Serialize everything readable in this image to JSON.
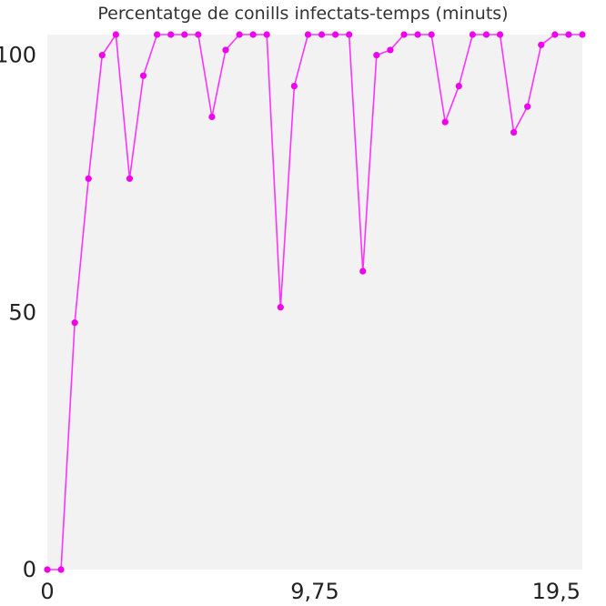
{
  "chart_data": {
    "type": "line",
    "title": "Percentatge de conills infectats-temps (minuts)",
    "xlabel": "",
    "ylabel": "",
    "xlim": [
      0,
      19.5
    ],
    "ylim": [
      0,
      104
    ],
    "x_ticks": [
      {
        "value": 0,
        "label": "0"
      },
      {
        "value": 9.75,
        "label": "9,75"
      },
      {
        "value": 19.5,
        "label": "19,5"
      }
    ],
    "y_ticks": [
      {
        "value": 0,
        "label": "0"
      },
      {
        "value": 50,
        "label": "50"
      },
      {
        "value": 100,
        "label": "100"
      }
    ],
    "grid": false,
    "background_color": "#f2f2f2",
    "series": [
      {
        "color": "#ff33ff",
        "marker_color": "#ee00ee",
        "points": [
          [
            0,
            0
          ],
          [
            0.5,
            0
          ],
          [
            1,
            48
          ],
          [
            1.5,
            76
          ],
          [
            2,
            100
          ],
          [
            2.5,
            104
          ],
          [
            3,
            76
          ],
          [
            3.5,
            96
          ],
          [
            4,
            104
          ],
          [
            4.5,
            104
          ],
          [
            5,
            104
          ],
          [
            5.5,
            104
          ],
          [
            6,
            88
          ],
          [
            6.5,
            101
          ],
          [
            7,
            104
          ],
          [
            7.5,
            104
          ],
          [
            8,
            104
          ],
          [
            8.5,
            51
          ],
          [
            9,
            94
          ],
          [
            9.5,
            104
          ],
          [
            10,
            104
          ],
          [
            10.5,
            104
          ],
          [
            11,
            104
          ],
          [
            11.5,
            58
          ],
          [
            12,
            100
          ],
          [
            12.5,
            101
          ],
          [
            13,
            104
          ],
          [
            13.5,
            104
          ],
          [
            14,
            104
          ],
          [
            14.5,
            87
          ],
          [
            15,
            94
          ],
          [
            15.5,
            104
          ],
          [
            16,
            104
          ],
          [
            16.5,
            104
          ],
          [
            17,
            85
          ],
          [
            17.5,
            90
          ],
          [
            18,
            102
          ],
          [
            18.5,
            104
          ],
          [
            19,
            104
          ],
          [
            19.5,
            104
          ]
        ]
      }
    ]
  }
}
